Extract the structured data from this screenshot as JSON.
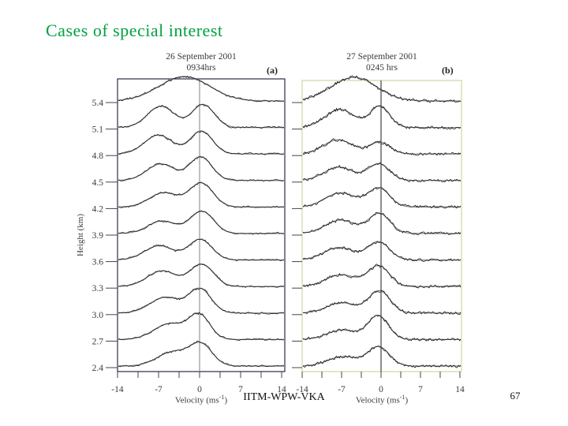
{
  "slide": {
    "title": "Cases of special interest",
    "footer": "IITM-WPW-VKA",
    "page_number": "67"
  },
  "colors": {
    "title_green": "#00a040",
    "panel_a_border": "#3c3c55",
    "panel_b_border": "#d6d8a8",
    "panel_a_zero_line": "#808080",
    "panel_b_zero_line": "#1a1a1a",
    "trace": "#1a1a1a",
    "fit": "#7d7d7d",
    "axis_text": "#3a3a3a"
  },
  "chart_data": [
    {
      "type": "line",
      "panel_tag": "(a)",
      "title": "26 September 2001",
      "subtitle": "0934hrs",
      "xlabel": {
        "pre": "Velocity (ms",
        "sup": "-1",
        "post": ")"
      },
      "ylabel": "Height (km)",
      "x_ticks": [
        -14,
        -7,
        0,
        7,
        14
      ],
      "x_minor_step": 3.5,
      "xlim": [
        -14,
        14.5
      ],
      "heights_km": [
        "5.4",
        "5.1",
        "4.8",
        "4.5",
        "4.2",
        "3.9",
        "3.6",
        "3.3",
        "3.0",
        "2.7",
        "2.4"
      ],
      "noise_amp": 0.8,
      "spectra": [
        {
          "height": "5.4",
          "peaks": [
            {
              "center": -2.6,
              "sigma": 4.3,
              "amp": 31
            }
          ]
        },
        {
          "height": "5.1",
          "peaks": [
            {
              "center": -6.6,
              "sigma": 2.3,
              "amp": 27
            },
            {
              "center": 0.6,
              "sigma": 1.9,
              "amp": 29
            }
          ]
        },
        {
          "height": "4.8",
          "peaks": [
            {
              "center": -7.0,
              "sigma": 2.4,
              "amp": 24
            },
            {
              "center": 0.3,
              "sigma": 1.9,
              "amp": 29
            }
          ]
        },
        {
          "height": "4.5",
          "peaks": [
            {
              "center": -6.6,
              "sigma": 2.4,
              "amp": 21
            },
            {
              "center": 0.2,
              "sigma": 1.9,
              "amp": 30
            }
          ]
        },
        {
          "height": "4.2",
          "peaks": [
            {
              "center": -6.1,
              "sigma": 2.5,
              "amp": 18
            },
            {
              "center": 0.3,
              "sigma": 2.0,
              "amp": 30
            }
          ]
        },
        {
          "height": "3.9",
          "peaks": [
            {
              "center": -6.4,
              "sigma": 2.4,
              "amp": 16
            },
            {
              "center": 0.4,
              "sigma": 2.0,
              "amp": 28
            }
          ]
        },
        {
          "height": "3.6",
          "peaks": [
            {
              "center": -6.9,
              "sigma": 2.5,
              "amp": 18
            },
            {
              "center": 0.1,
              "sigma": 2.0,
              "amp": 26
            }
          ]
        },
        {
          "height": "3.3",
          "peaks": [
            {
              "center": -6.4,
              "sigma": 2.5,
              "amp": 20
            },
            {
              "center": 0.4,
              "sigma": 2.0,
              "amp": 28
            }
          ]
        },
        {
          "height": "3.0",
          "peaks": [
            {
              "center": -5.8,
              "sigma": 2.6,
              "amp": 20
            },
            {
              "center": 0.1,
              "sigma": 1.9,
              "amp": 30
            }
          ]
        },
        {
          "height": "2.7",
          "peaks": [
            {
              "center": -5.1,
              "sigma": 2.7,
              "amp": 20
            },
            {
              "center": 0.0,
              "sigma": 1.8,
              "amp": 30
            }
          ]
        },
        {
          "height": "2.4",
          "peaks": [
            {
              "center": -4.5,
              "sigma": 2.7,
              "amp": 18
            },
            {
              "center": 0.3,
              "sigma": 1.9,
              "amp": 26
            }
          ]
        }
      ]
    },
    {
      "type": "line",
      "panel_tag": "(b)",
      "title": "27 September 2001",
      "subtitle": "0245 hrs",
      "xlabel": {
        "pre": "Velocity (ms",
        "sup": "-1",
        "post": ")"
      },
      "ylabel": "Height (km)",
      "x_ticks": [
        -14,
        -7,
        0,
        7,
        14
      ],
      "x_minor_step": 3.5,
      "xlim": [
        -14,
        14.3
      ],
      "heights_km": [
        "5.4",
        "5.1",
        "4.8",
        "4.5",
        "4.2",
        "3.9",
        "3.6",
        "3.3",
        "3.0",
        "2.7",
        "2.4"
      ],
      "noise_amp": 1.5,
      "spectra": [
        {
          "height": "5.4",
          "peaks": [
            {
              "center": -4.8,
              "sigma": 4.0,
              "amp": 30
            }
          ]
        },
        {
          "height": "5.1",
          "peaks": [
            {
              "center": -7.3,
              "sigma": 2.6,
              "amp": 23
            },
            {
              "center": -0.2,
              "sigma": 1.7,
              "amp": 27
            }
          ]
        },
        {
          "height": "4.8",
          "peaks": [
            {
              "center": -7.6,
              "sigma": 2.6,
              "amp": 18
            },
            {
              "center": -0.2,
              "sigma": 1.8,
              "amp": 15
            }
          ]
        },
        {
          "height": "4.5",
          "peaks": [
            {
              "center": -7.5,
              "sigma": 2.6,
              "amp": 17
            },
            {
              "center": -0.4,
              "sigma": 1.9,
              "amp": 21
            }
          ]
        },
        {
          "height": "4.2",
          "peaks": [
            {
              "center": -7.2,
              "sigma": 2.7,
              "amp": 18
            },
            {
              "center": -0.4,
              "sigma": 1.9,
              "amp": 24
            }
          ]
        },
        {
          "height": "3.9",
          "peaks": [
            {
              "center": -7.2,
              "sigma": 2.7,
              "amp": 17
            },
            {
              "center": -0.3,
              "sigma": 1.9,
              "amp": 25
            }
          ]
        },
        {
          "height": "3.6",
          "peaks": [
            {
              "center": -7.4,
              "sigma": 2.7,
              "amp": 16
            },
            {
              "center": -0.4,
              "sigma": 1.9,
              "amp": 23
            }
          ]
        },
        {
          "height": "3.3",
          "peaks": [
            {
              "center": -7.1,
              "sigma": 2.7,
              "amp": 15
            },
            {
              "center": -0.4,
              "sigma": 1.9,
              "amp": 26
            }
          ]
        },
        {
          "height": "3.0",
          "peaks": [
            {
              "center": -7.0,
              "sigma": 2.6,
              "amp": 13
            },
            {
              "center": -0.3,
              "sigma": 1.9,
              "amp": 28
            }
          ]
        },
        {
          "height": "2.7",
          "peaks": [
            {
              "center": -6.9,
              "sigma": 2.7,
              "amp": 12
            },
            {
              "center": -0.5,
              "sigma": 1.8,
              "amp": 30
            }
          ]
        },
        {
          "height": "2.4",
          "peaks": [
            {
              "center": -6.7,
              "sigma": 2.7,
              "amp": 12
            },
            {
              "center": -0.4,
              "sigma": 1.9,
              "amp": 24
            }
          ]
        }
      ]
    }
  ]
}
